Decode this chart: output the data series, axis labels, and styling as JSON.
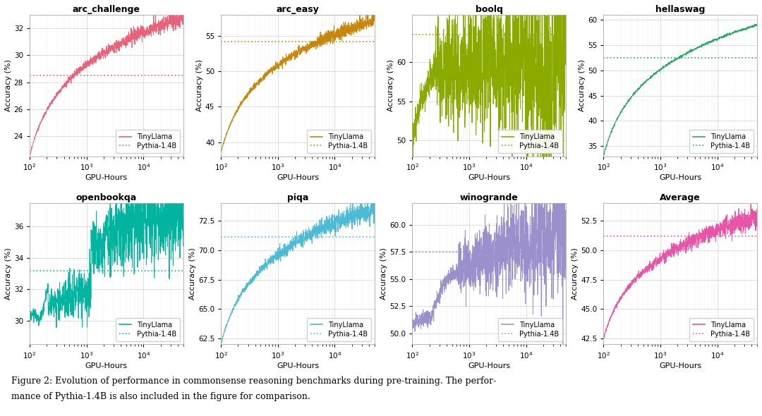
{
  "subplots": [
    {
      "title": "arc_challenge",
      "color": "#e8637a",
      "pythia_val": 28.5,
      "ylim": [
        22.5,
        33
      ],
      "yticks": [
        24,
        26,
        28,
        30,
        32
      ],
      "start_val": 22.5,
      "end_val": 32.8,
      "noise_scale": 0.35,
      "noise_increase": true,
      "trend_shape": "log_rise",
      "legend_loc": "lower right"
    },
    {
      "title": "arc_easy",
      "color": "#c8860a",
      "pythia_val": 54.2,
      "ylim": [
        38,
        58
      ],
      "yticks": [
        40,
        45,
        50,
        55
      ],
      "start_val": 38.5,
      "end_val": 57.2,
      "noise_scale": 0.6,
      "noise_increase": true,
      "trend_shape": "log_rise",
      "legend_loc": "lower right"
    },
    {
      "title": "boolq",
      "color": "#8aaa00",
      "pythia_val": 63.5,
      "ylim": [
        48,
        66
      ],
      "yticks": [
        50,
        55,
        60
      ],
      "start_val": 48.0,
      "end_val": 63.8,
      "noise_scale": 2.0,
      "noise_increase": true,
      "trend_shape": "boolq_shape",
      "legend_loc": "lower right"
    },
    {
      "title": "hellaswag",
      "color": "#2aaa6a",
      "pythia_val": 52.5,
      "ylim": [
        33,
        61
      ],
      "yticks": [
        35,
        40,
        45,
        50,
        55,
        60
      ],
      "start_val": 33.0,
      "end_val": 59.0,
      "noise_scale": 0.4,
      "noise_increase": false,
      "trend_shape": "log_rise",
      "legend_loc": "lower right"
    },
    {
      "title": "openbookqa",
      "color": "#00b4a0",
      "pythia_val": 33.2,
      "ylim": [
        28.5,
        37.5
      ],
      "yticks": [
        30,
        32,
        34,
        36
      ],
      "start_val": 30.2,
      "end_val": 37.2,
      "noise_scale": 0.9,
      "noise_increase": true,
      "trend_shape": "openbookqa_shape",
      "legend_loc": "lower right"
    },
    {
      "title": "piqa",
      "color": "#4dbbd5",
      "pythia_val": 71.1,
      "ylim": [
        62,
        74
      ],
      "yticks": [
        62.5,
        65.0,
        67.5,
        70.0,
        72.5
      ],
      "start_val": 62.0,
      "end_val": 73.5,
      "noise_scale": 0.5,
      "noise_increase": true,
      "trend_shape": "log_rise",
      "legend_loc": "lower right"
    },
    {
      "title": "winogrande",
      "color": "#9b8fcc",
      "pythia_val": 57.5,
      "ylim": [
        49,
        62
      ],
      "yticks": [
        50.0,
        52.5,
        55.0,
        57.5,
        60.0
      ],
      "start_val": 51.0,
      "end_val": 59.5,
      "noise_scale": 1.2,
      "noise_increase": true,
      "trend_shape": "winogrande_shape",
      "legend_loc": "lower right"
    },
    {
      "title": "Average",
      "color": "#e855a8",
      "pythia_val": 51.2,
      "ylim": [
        42,
        54
      ],
      "yticks": [
        42.5,
        45.0,
        47.5,
        50.0,
        52.5
      ],
      "start_val": 42.5,
      "end_val": 52.8,
      "noise_scale": 0.5,
      "noise_increase": true,
      "trend_shape": "log_rise",
      "legend_loc": "lower right"
    }
  ],
  "xlabel": "GPU-Hours",
  "ylabel": "Accuracy (%)",
  "xmin": 100,
  "xmax": 50000,
  "caption_line1": "Figure 2: Evolution of performance in commonsense reasoning benchmarks during pre-training. The perfor-",
  "caption_line2": "mance of Pythia-1.4B is also included in the figure for comparison.",
  "legend_tinyllama": "TinyLlama",
  "legend_pythia": "Pythia-1.4B",
  "bg_color": "#ffffff",
  "grid_color": "#d0d0d0"
}
